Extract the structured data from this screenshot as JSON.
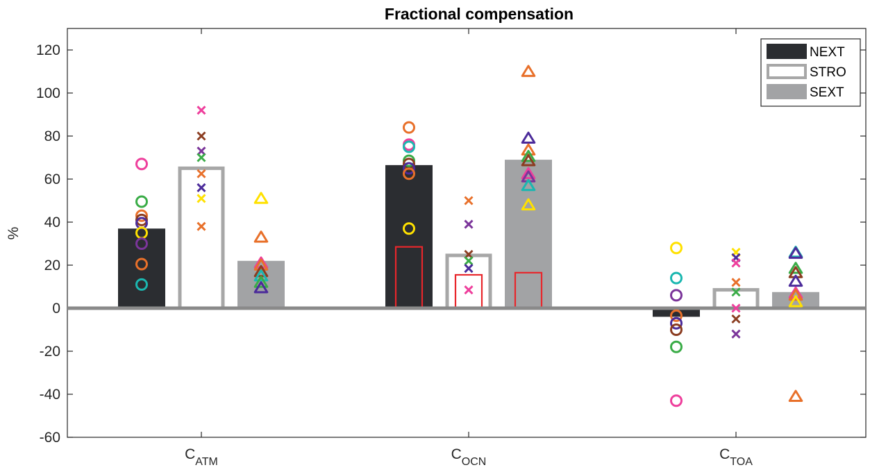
{
  "chart_data": {
    "type": "bar",
    "title": "Fractional compensation",
    "ylabel": "%",
    "xlabel": "",
    "ylim": [
      -60,
      130
    ],
    "yticks": [
      -60,
      -40,
      -20,
      0,
      20,
      40,
      60,
      80,
      100,
      120
    ],
    "categories": [
      {
        "base": "C",
        "sub": "ATM"
      },
      {
        "base": "C",
        "sub": "OCN"
      },
      {
        "base": "C",
        "sub": "TOA"
      }
    ],
    "legend_position": "top-right",
    "legend": [
      "NEXT",
      "STRO",
      "SEXT"
    ],
    "series": [
      {
        "name": "NEXT",
        "style": "filled-dark",
        "values": [
          37,
          66.5,
          -4
        ],
        "inner_values": [
          null,
          28.5,
          null
        ]
      },
      {
        "name": "STRO",
        "style": "outline",
        "values": [
          66,
          25.5,
          9.5
        ],
        "inner_values": [
          null,
          15.5,
          null
        ]
      },
      {
        "name": "SEXT",
        "style": "filled-gray",
        "values": [
          22,
          69,
          7.5
        ],
        "inner_values": [
          null,
          16.5,
          null
        ]
      }
    ],
    "markers": {
      "NEXT": {
        "shape": "circle",
        "points": [
          [
            {
              "color": "#ee3f9c",
              "value": 67
            },
            {
              "color": "#3aac47",
              "value": 49.5
            },
            {
              "color": "#e8702a",
              "value": 43
            },
            {
              "color": "#8b3d21",
              "value": 41
            },
            {
              "color": "#4b2b9a",
              "value": 39.5
            },
            {
              "color": "#ffe100",
              "value": 35
            },
            {
              "color": "#7b359a",
              "value": 30
            },
            {
              "color": "#e8702a",
              "value": 20.5
            },
            {
              "color": "#1bb7b0",
              "value": 11
            }
          ],
          [
            {
              "color": "#e8702a",
              "value": 84
            },
            {
              "color": "#ee3f9c",
              "value": 76
            },
            {
              "color": "#1bb7b0",
              "value": 75
            },
            {
              "color": "#3aac47",
              "value": 68.5
            },
            {
              "color": "#8b3d21",
              "value": 67
            },
            {
              "color": "#4b2b9a",
              "value": 65
            },
            {
              "color": "#e8702a",
              "value": 62.5
            },
            {
              "color": "#ffe100",
              "value": 37
            }
          ],
          [
            {
              "color": "#ffe100",
              "value": 28
            },
            {
              "color": "#1bb7b0",
              "value": 14
            },
            {
              "color": "#7b359a",
              "value": 6
            },
            {
              "color": "#e8702a",
              "value": -3.5
            },
            {
              "color": "#4b2b9a",
              "value": -7
            },
            {
              "color": "#8b3d21",
              "value": -10
            },
            {
              "color": "#3aac47",
              "value": -18
            },
            {
              "color": "#ee3f9c",
              "value": -43
            }
          ]
        ]
      },
      "STRO": {
        "shape": "cross",
        "points": [
          [
            {
              "color": "#ee3f9c",
              "value": 92
            },
            {
              "color": "#8b3d21",
              "value": 80
            },
            {
              "color": "#7b359a",
              "value": 73
            },
            {
              "color": "#3aac47",
              "value": 70
            },
            {
              "color": "#e8702a",
              "value": 62.5
            },
            {
              "color": "#4b2b9a",
              "value": 56
            },
            {
              "color": "#ffe100",
              "value": 51
            },
            {
              "color": "#e8702a",
              "value": 38
            }
          ],
          [
            {
              "color": "#e8702a",
              "value": 50
            },
            {
              "color": "#7b359a",
              "value": 39
            },
            {
              "color": "#8b3d21",
              "value": 25
            },
            {
              "color": "#3aac47",
              "value": 22
            },
            {
              "color": "#4b2b9a",
              "value": 18.5
            },
            {
              "color": "#ee3f9c",
              "value": 8.5
            }
          ],
          [
            {
              "color": "#ffe100",
              "value": 26
            },
            {
              "color": "#4b2b9a",
              "value": 23.5
            },
            {
              "color": "#ee3f9c",
              "value": 21
            },
            {
              "color": "#e8702a",
              "value": 12
            },
            {
              "color": "#3aac47",
              "value": 7.5
            },
            {
              "color": "#ee3f9c",
              "value": 0
            },
            {
              "color": "#8b3d21",
              "value": -5
            },
            {
              "color": "#7b359a",
              "value": -12
            }
          ]
        ]
      },
      "SEXT": {
        "shape": "triangle",
        "points": [
          [
            {
              "color": "#ffe100",
              "value": 51
            },
            {
              "color": "#e8702a",
              "value": 33
            },
            {
              "color": "#ee3f9c",
              "value": 21
            },
            {
              "color": "#e8702a",
              "value": 20
            },
            {
              "color": "#8b3d21",
              "value": 17
            },
            {
              "color": "#1bb7b0",
              "value": 15
            },
            {
              "color": "#3aac47",
              "value": 12
            },
            {
              "color": "#4b2b9a",
              "value": 9.5
            }
          ],
          [
            {
              "color": "#e8702a",
              "value": 110
            },
            {
              "color": "#4b2b9a",
              "value": 79
            },
            {
              "color": "#e8702a",
              "value": 73.5
            },
            {
              "color": "#3aac47",
              "value": 70.5
            },
            {
              "color": "#8b3d21",
              "value": 68.5
            },
            {
              "color": "#ee3f9c",
              "value": 62.5
            },
            {
              "color": "#7b359a",
              "value": 61
            },
            {
              "color": "#1bb7b0",
              "value": 57
            },
            {
              "color": "#ffe100",
              "value": 48
            }
          ],
          [
            {
              "color": "#1bb7b0",
              "value": 26
            },
            {
              "color": "#4b2b9a",
              "value": 25.5
            },
            {
              "color": "#3aac47",
              "value": 18.5
            },
            {
              "color": "#8b3d21",
              "value": 16.5
            },
            {
              "color": "#4b2b9a",
              "value": 12.5
            },
            {
              "color": "#ee3f9c",
              "value": 7
            },
            {
              "color": "#e8702a",
              "value": 6
            },
            {
              "color": "#ffe100",
              "value": 3
            },
            {
              "color": "#e8702a",
              "value": -41
            }
          ]
        ]
      }
    },
    "colors": {
      "next_fill": "#2b2d31",
      "stro_edge": "#a7a7a7",
      "sext_fill": "#a2a3a5",
      "inner_bar": "#e8262b",
      "zero_line": "#8a8a8a",
      "axis": "#262626"
    }
  }
}
